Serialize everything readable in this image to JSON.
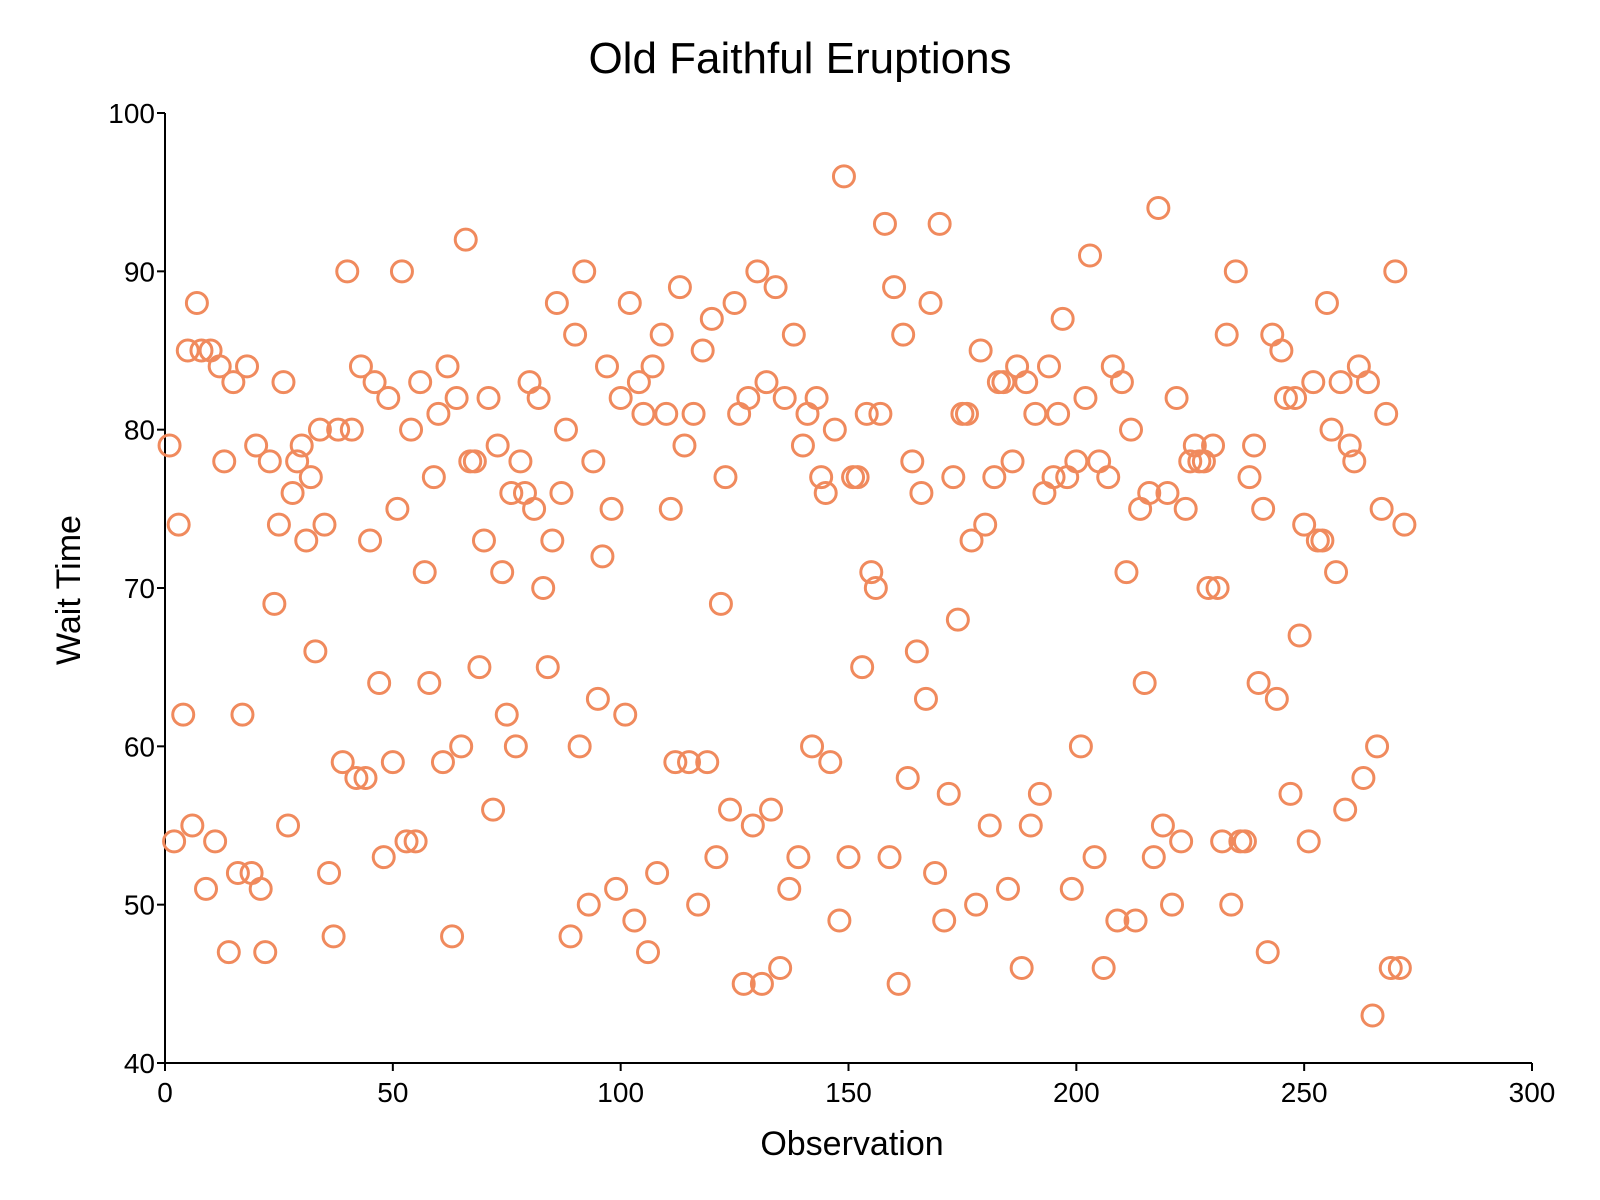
{
  "chart_data": {
    "type": "scatter",
    "title": "Old Faithful Eruptions",
    "xlabel": "Observation",
    "ylabel": "Wait Time",
    "xlim": [
      0,
      300
    ],
    "ylim": [
      40,
      100
    ],
    "xticks": [
      0,
      50,
      100,
      150,
      200,
      250,
      300
    ],
    "yticks": [
      40,
      50,
      60,
      70,
      80,
      90,
      100
    ],
    "grid": false,
    "legend": "none",
    "marker": "open-circle",
    "color": "#f08a5d",
    "series": [
      {
        "x": [
          1,
          2,
          3,
          4,
          5,
          6,
          7,
          8,
          9,
          10,
          11,
          12,
          13,
          14,
          15,
          16,
          17,
          18,
          19,
          20,
          21,
          22,
          23,
          24,
          25,
          26,
          27,
          28,
          29,
          30,
          31,
          32,
          33,
          34,
          35,
          36,
          37,
          38,
          39,
          40,
          41,
          42,
          43,
          44,
          45,
          46,
          47,
          48,
          49,
          50,
          51,
          52,
          53,
          54,
          55,
          56,
          57,
          58,
          59,
          60,
          61,
          62,
          63,
          64,
          65,
          66,
          67,
          68,
          69,
          70,
          71,
          72,
          73,
          74,
          75,
          76,
          77,
          78,
          79,
          80,
          81,
          82,
          83,
          84,
          85,
          86,
          87,
          88,
          89,
          90,
          91,
          92,
          93,
          94,
          95,
          96,
          97,
          98,
          99,
          100,
          101,
          102,
          103,
          104,
          105,
          106,
          107,
          108,
          109,
          110,
          111,
          112,
          113,
          114,
          115,
          116,
          117,
          118,
          119,
          120,
          121,
          122,
          123,
          124,
          125,
          126,
          127,
          128,
          129,
          130,
          131,
          132,
          133,
          134,
          135,
          136,
          137,
          138,
          139,
          140,
          141,
          142,
          143,
          144,
          145,
          146,
          147,
          148,
          149,
          150,
          151,
          152,
          153,
          154,
          155,
          156,
          157,
          158,
          159,
          160,
          161,
          162,
          163,
          164,
          165,
          166,
          167,
          168,
          169,
          170,
          171,
          172,
          173,
          174,
          175,
          176,
          177,
          178,
          179,
          180,
          181,
          182,
          183,
          184,
          185,
          186,
          187,
          188,
          189,
          190,
          191,
          192,
          193,
          194,
          195,
          196,
          197,
          198,
          199,
          200,
          201,
          202,
          203,
          204,
          205,
          206,
          207,
          208,
          209,
          210,
          211,
          212,
          213,
          214,
          215,
          216,
          217,
          218,
          219,
          220,
          221,
          222,
          223,
          224,
          225,
          226,
          227,
          228,
          229,
          230,
          231,
          232,
          233,
          234,
          235,
          236,
          237,
          238,
          239,
          240,
          241,
          242,
          243,
          244,
          245,
          246,
          247,
          248,
          249,
          250,
          251,
          252,
          253,
          254,
          255,
          256,
          257,
          258,
          259,
          260,
          261,
          262,
          263,
          264,
          265,
          266,
          267,
          268,
          269,
          270,
          271,
          272
        ],
        "y": [
          79,
          54,
          74,
          62,
          85,
          55,
          88,
          85,
          51,
          85,
          54,
          84,
          78,
          47,
          83,
          52,
          62,
          84,
          52,
          79,
          51,
          47,
          78,
          69,
          74,
          83,
          55,
          76,
          78,
          79,
          73,
          77,
          66,
          80,
          74,
          52,
          48,
          80,
          59,
          90,
          80,
          58,
          84,
          58,
          73,
          83,
          64,
          53,
          82,
          59,
          75,
          90,
          54,
          80,
          54,
          83,
          71,
          64,
          77,
          81,
          59,
          84,
          48,
          82,
          60,
          92,
          78,
          78,
          65,
          73,
          82,
          56,
          79,
          71,
          62,
          76,
          60,
          78,
          76,
          83,
          75,
          82,
          70,
          65,
          73,
          88,
          76,
          80,
          48,
          86,
          60,
          90,
          50,
          78,
          63,
          72,
          84,
          75,
          51,
          82,
          62,
          88,
          49,
          83,
          81,
          47,
          84,
          52,
          86,
          81,
          75,
          59,
          89,
          79,
          59,
          81,
          50,
          85,
          59,
          87,
          53,
          69,
          77,
          56,
          88,
          81,
          45,
          82,
          55,
          90,
          45,
          83,
          56,
          89,
          46,
          82,
          51,
          86,
          53,
          79,
          81,
          60,
          82,
          77,
          76,
          59,
          80,
          49,
          96,
          53,
          77,
          77,
          65,
          81,
          71,
          70,
          81,
          93,
          53,
          89,
          45,
          86,
          58,
          78,
          66,
          76,
          63,
          88,
          52,
          93,
          49,
          57,
          77,
          68,
          81,
          81,
          73,
          50,
          85,
          74,
          55,
          77,
          83,
          83,
          51,
          78,
          84,
          46,
          83,
          55,
          81,
          57,
          76,
          84,
          77,
          81,
          87,
          77,
          51,
          78,
          60,
          82,
          91,
          53,
          78,
          46,
          77,
          84,
          49,
          83,
          71,
          80,
          49,
          75,
          64,
          76,
          53,
          94,
          55,
          76,
          50,
          82,
          54,
          75,
          78,
          79,
          78,
          78,
          70,
          79,
          70,
          54,
          86,
          50,
          90,
          54,
          54,
          77,
          79,
          64,
          75,
          47,
          86,
          63,
          85,
          82,
          57,
          82,
          67,
          74,
          54,
          83,
          73,
          73,
          88,
          80,
          71,
          83,
          56,
          79,
          78,
          84,
          58,
          83,
          43,
          60,
          75,
          81,
          46,
          90,
          46,
          74
        ]
      }
    ]
  }
}
